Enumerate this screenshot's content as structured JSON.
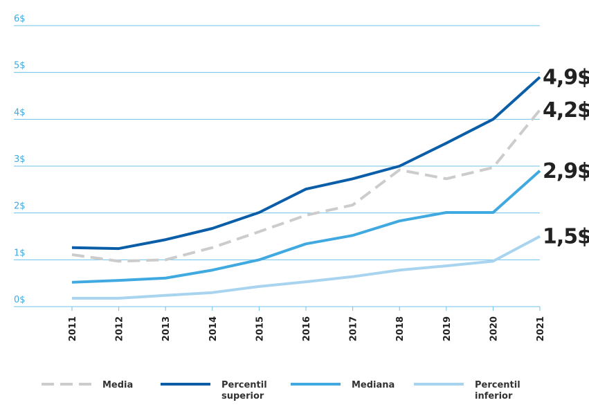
{
  "chart_data": {
    "type": "line",
    "categories": [
      "2011",
      "2012",
      "2013",
      "2014",
      "2015",
      "2016",
      "2017",
      "2018",
      "2019",
      "2020",
      "2021"
    ],
    "ylim": [
      0,
      6
    ],
    "yticks": [
      {
        "value": 0,
        "label": "0$"
      },
      {
        "value": 1,
        "label": "1$"
      },
      {
        "value": 2,
        "label": "2$"
      },
      {
        "value": 3,
        "label": "3$"
      },
      {
        "value": 4,
        "label": "4$"
      },
      {
        "value": 5,
        "label": "5$"
      },
      {
        "value": 6,
        "label": "6$"
      }
    ],
    "grid": true,
    "legend": "bottom",
    "series": [
      {
        "name": "Media",
        "color": "#cccccc",
        "style": "dashed",
        "values": [
          1.11,
          0.97,
          1.0,
          1.26,
          1.6,
          1.95,
          2.17,
          2.92,
          2.73,
          2.97,
          4.2
        ],
        "value_labels": [
          null,
          null,
          null,
          null,
          null,
          null,
          null,
          null,
          null,
          null,
          "4,2$"
        ]
      },
      {
        "name": "Percentil superior",
        "color": "#0a5ea8",
        "style": "solid",
        "values": [
          1.26,
          1.24,
          1.43,
          1.67,
          2.01,
          2.51,
          2.73,
          3.0,
          3.49,
          4.0,
          4.9
        ],
        "value_labels": [
          null,
          null,
          null,
          null,
          null,
          null,
          null,
          null,
          null,
          null,
          "4,9$"
        ]
      },
      {
        "name": "Mediana",
        "color": "#3fa9e0",
        "style": "solid",
        "values": [
          0.52,
          0.56,
          0.61,
          0.78,
          1.0,
          1.34,
          1.52,
          1.83,
          2.01,
          2.01,
          2.9
        ],
        "value_labels": [
          null,
          null,
          null,
          null,
          null,
          null,
          null,
          null,
          null,
          null,
          "2,9$"
        ]
      },
      {
        "name": "Percentil inferior",
        "color": "#a8d4ef",
        "style": "solid",
        "values": [
          0.18,
          0.18,
          0.24,
          0.3,
          0.43,
          0.53,
          0.64,
          0.78,
          0.87,
          0.97,
          1.5
        ],
        "value_labels": [
          null,
          null,
          null,
          null,
          null,
          null,
          null,
          null,
          null,
          null,
          "1,5$"
        ]
      }
    ]
  }
}
